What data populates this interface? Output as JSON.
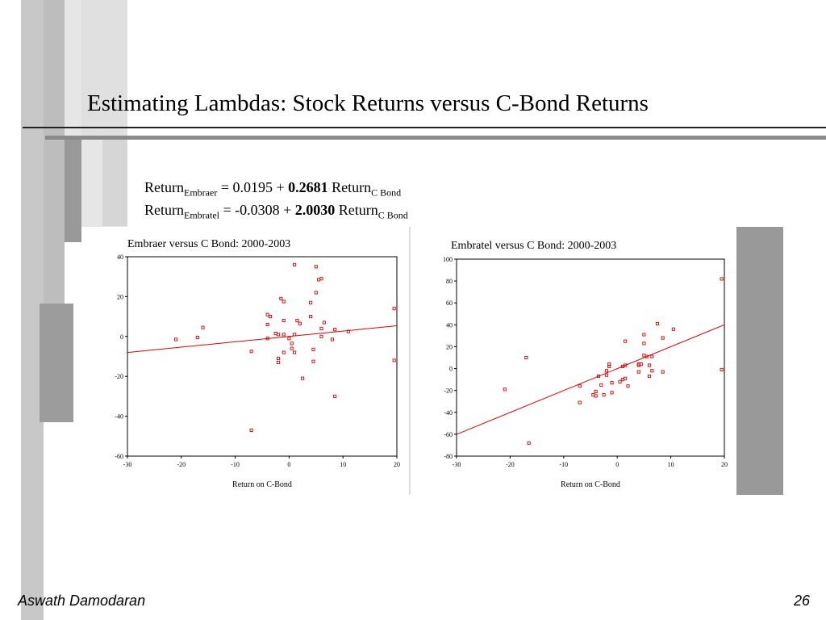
{
  "slide": {
    "title": "Estimating Lambdas: Stock Returns versus C-Bond Returns",
    "footer_author": "Aswath Damodaran",
    "page_number": "26"
  },
  "equations": [
    {
      "lhs": "Return",
      "lhs_sub": "Embraer",
      "mid": " = 0.0195 + ",
      "coef": "0.2681",
      "rhs": " Return",
      "rhs_sub": "C Bond"
    },
    {
      "lhs": "Return",
      "lhs_sub": "Embratel",
      "mid": " = -0.0308 + ",
      "coef": "2.0030",
      "rhs": " Return",
      "rhs_sub": "C Bond"
    }
  ],
  "colors": {
    "points": "#e00000",
    "line": "#e00000",
    "grey": "#999999"
  },
  "chart_data": [
    {
      "type": "scatter",
      "title": "Embraer versus C Bond: 2000-2003",
      "xlabel": "Return on C-Bond",
      "ylabel": "",
      "xlim": [
        -30,
        20
      ],
      "ylim": [
        -60,
        40
      ],
      "xticks": [
        -30,
        -20,
        -10,
        0,
        10,
        20
      ],
      "yticks": [
        -60,
        -40,
        -20,
        0,
        20,
        40
      ],
      "grid": false,
      "trendline": {
        "intercept": 0.0195,
        "slope": 0.2681
      },
      "points": [
        [
          -21,
          -1.5
        ],
        [
          -17,
          -0.5
        ],
        [
          -16,
          4.5
        ],
        [
          -7,
          -7.5
        ],
        [
          -7,
          -47
        ],
        [
          -4,
          11
        ],
        [
          -3.5,
          10
        ],
        [
          -4,
          6
        ],
        [
          -4,
          -1
        ],
        [
          -2.5,
          1.5
        ],
        [
          -2,
          -11
        ],
        [
          -2,
          -13
        ],
        [
          -2,
          1
        ],
        [
          -1.5,
          19
        ],
        [
          -1,
          17.5
        ],
        [
          -1,
          8
        ],
        [
          -1,
          -8
        ],
        [
          -1,
          1
        ],
        [
          0,
          -1
        ],
        [
          0.5,
          -3.5
        ],
        [
          0.5,
          -6
        ],
        [
          1,
          1
        ],
        [
          1,
          -8
        ],
        [
          1,
          36
        ],
        [
          1.5,
          8
        ],
        [
          2,
          6.5
        ],
        [
          2.5,
          -21
        ],
        [
          4,
          17
        ],
        [
          4,
          10
        ],
        [
          4.5,
          -6.5
        ],
        [
          4.5,
          -12.5
        ],
        [
          5,
          35
        ],
        [
          5,
          22
        ],
        [
          5.5,
          28.5
        ],
        [
          6,
          29
        ],
        [
          6,
          4
        ],
        [
          6,
          0
        ],
        [
          6.5,
          7
        ],
        [
          8,
          -1.5
        ],
        [
          8.5,
          3.5
        ],
        [
          8.5,
          -30
        ],
        [
          11,
          2.5
        ],
        [
          19.5,
          14
        ],
        [
          19.5,
          -12
        ]
      ]
    },
    {
      "type": "scatter",
      "title": "Embratel versus C Bond: 2000-2003",
      "xlabel": "Return on C-Bond",
      "ylabel": "",
      "xlim": [
        -30,
        20
      ],
      "ylim": [
        -80,
        100
      ],
      "xticks": [
        -30,
        -20,
        -10,
        0,
        10,
        20
      ],
      "yticks": [
        -80,
        -60,
        -40,
        -20,
        0,
        20,
        40,
        60,
        80,
        100
      ],
      "grid": false,
      "trendline": {
        "intercept": -0.0308,
        "slope": 2.003
      },
      "points": [
        [
          -21,
          -19
        ],
        [
          -17,
          10
        ],
        [
          -16.5,
          -68
        ],
        [
          -7,
          -31
        ],
        [
          -7,
          -16
        ],
        [
          -4.5,
          -24
        ],
        [
          -4,
          -25
        ],
        [
          -4,
          -21
        ],
        [
          -3.5,
          -7
        ],
        [
          -3,
          -15
        ],
        [
          -2.5,
          -24
        ],
        [
          -2,
          -2
        ],
        [
          -2,
          -6
        ],
        [
          -1.5,
          4
        ],
        [
          -1.5,
          2
        ],
        [
          -1,
          -13
        ],
        [
          -1,
          -22
        ],
        [
          0.5,
          -12
        ],
        [
          1,
          -10
        ],
        [
          1,
          2
        ],
        [
          1.5,
          -9
        ],
        [
          1.5,
          3
        ],
        [
          1.5,
          25
        ],
        [
          2,
          -16
        ],
        [
          4,
          3
        ],
        [
          4,
          -3
        ],
        [
          4,
          4
        ],
        [
          4.5,
          4
        ],
        [
          5,
          31
        ],
        [
          5,
          23
        ],
        [
          5,
          12
        ],
        [
          5.5,
          11
        ],
        [
          6,
          3
        ],
        [
          6,
          -7
        ],
        [
          6.5,
          11
        ],
        [
          6.5,
          -2
        ],
        [
          7.5,
          41
        ],
        [
          8.5,
          28
        ],
        [
          8.5,
          -3
        ],
        [
          10.5,
          36
        ],
        [
          19.5,
          82
        ],
        [
          19.5,
          -1
        ]
      ]
    }
  ]
}
